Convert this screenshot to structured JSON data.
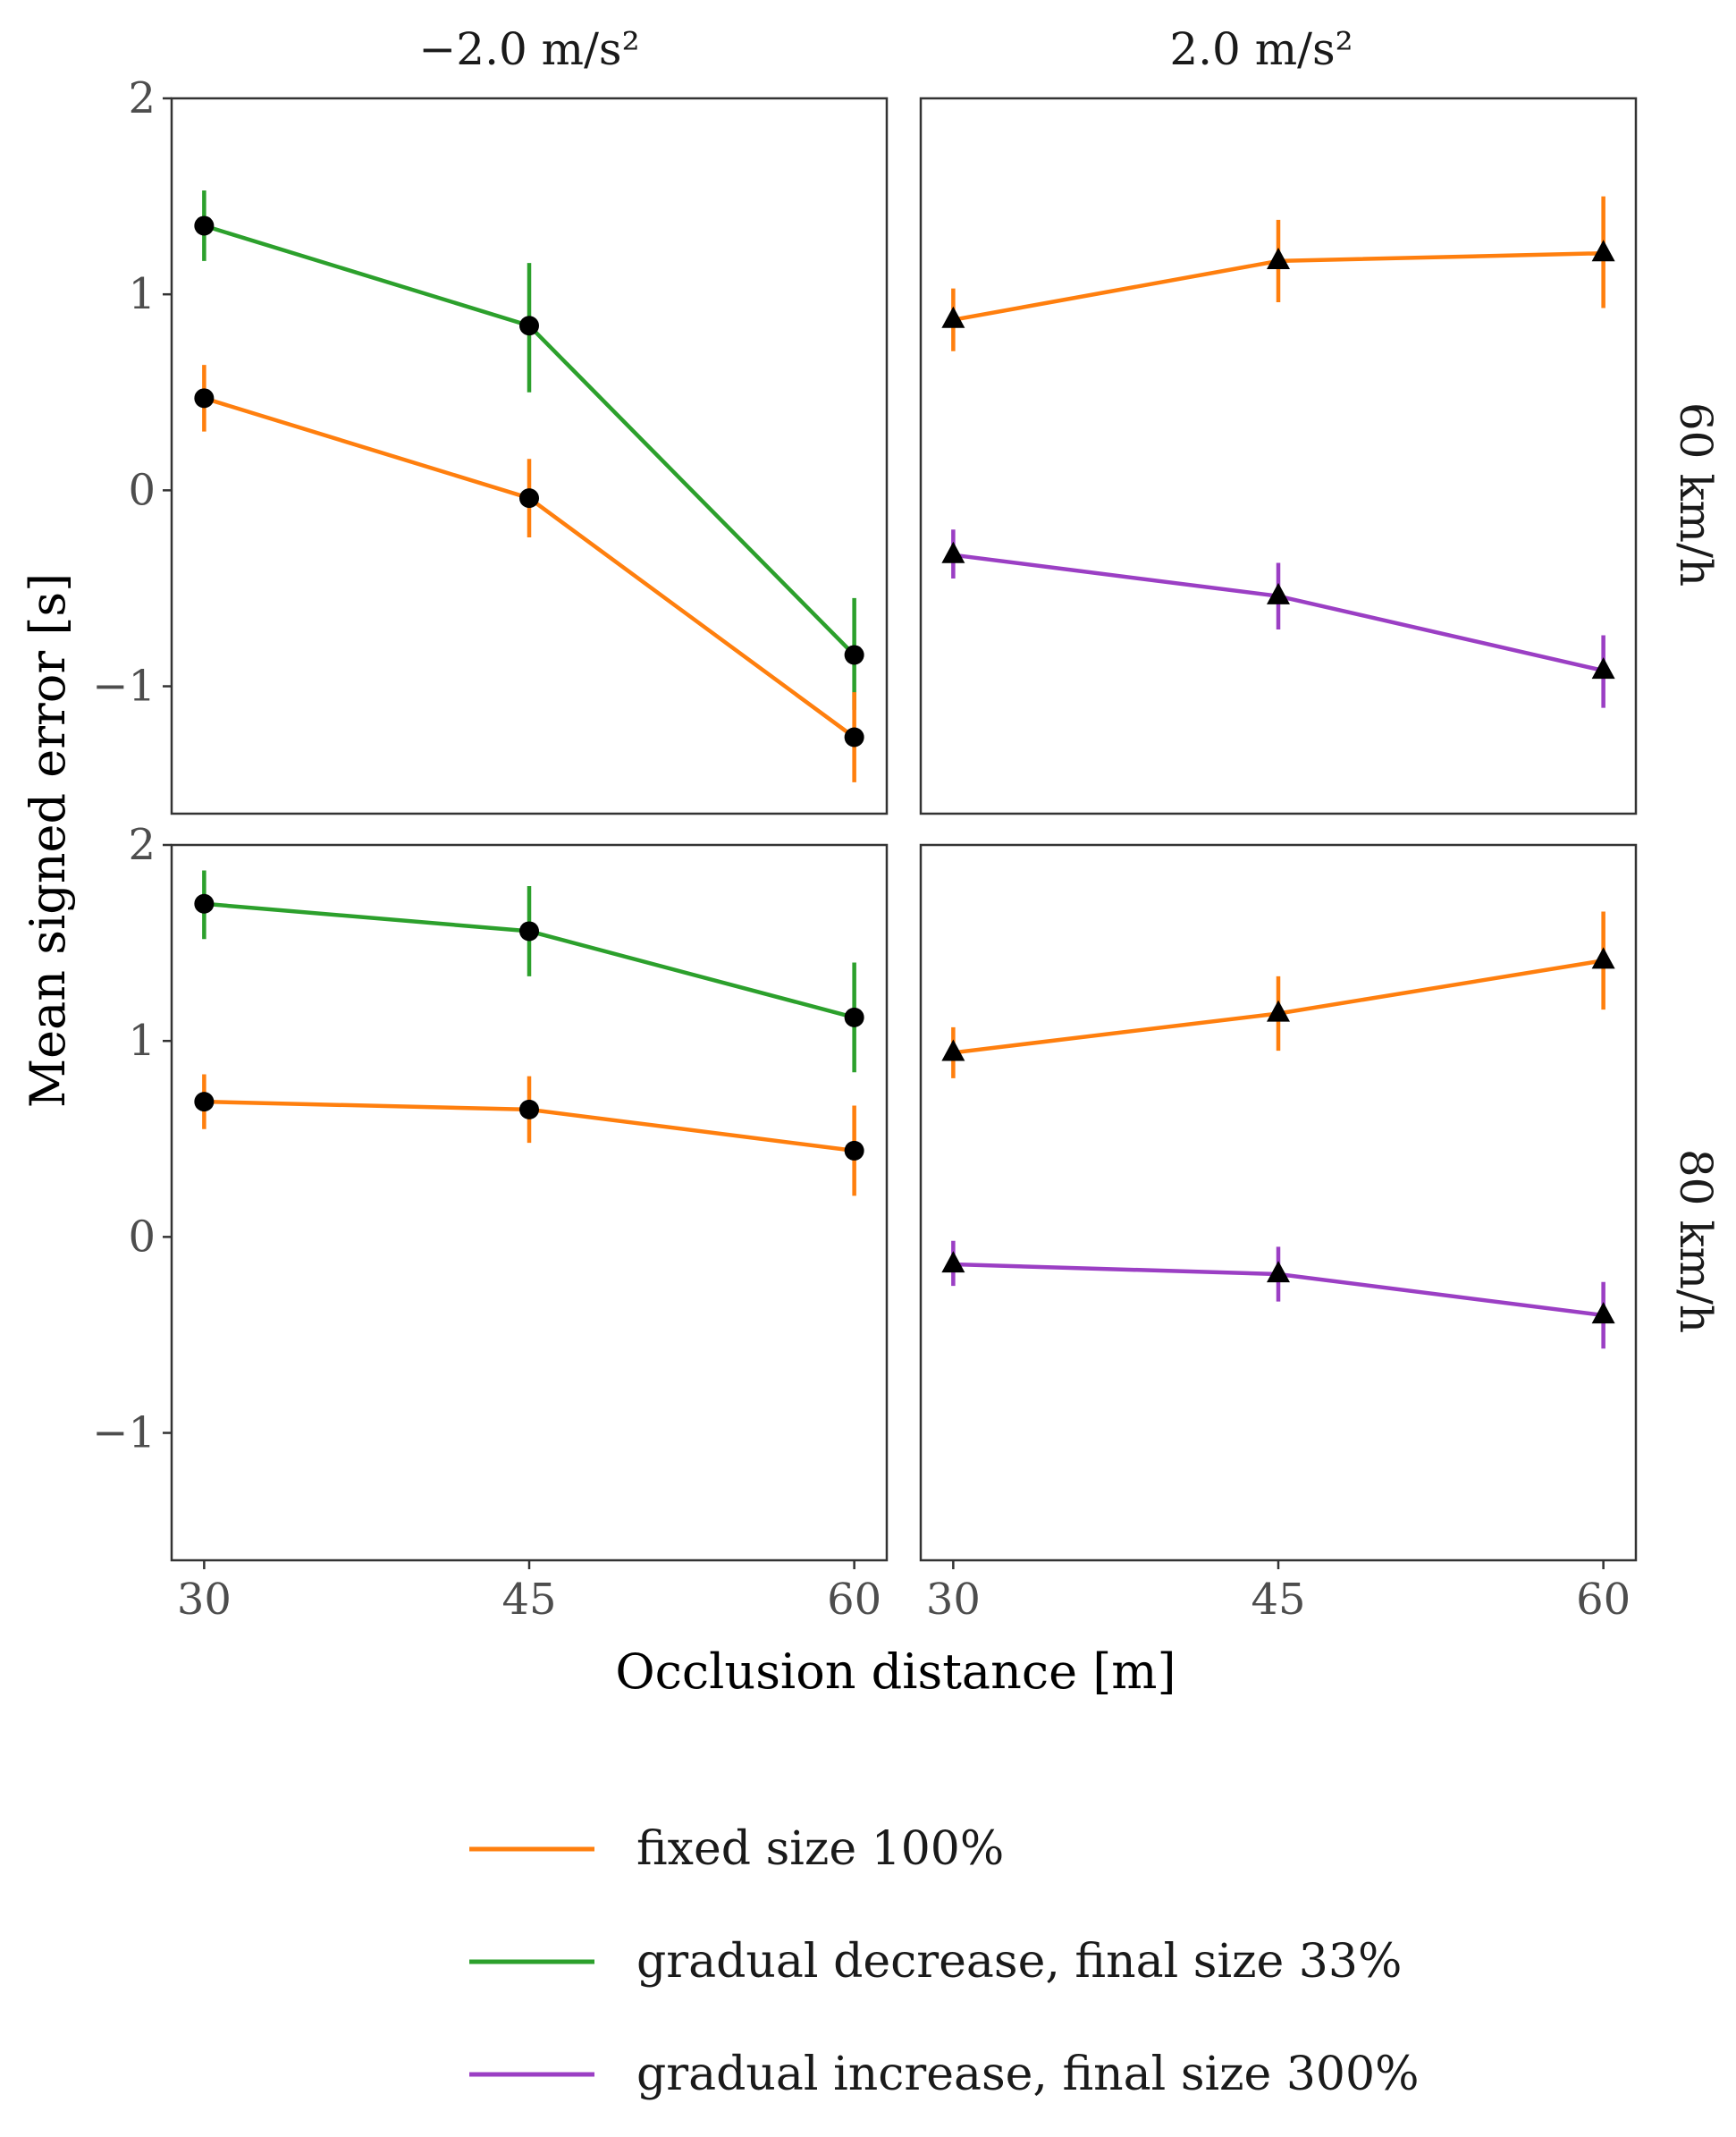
{
  "chart_data": {
    "type": "line",
    "xlabel": "Occlusion distance [m]",
    "ylabel": "Mean signed error [s]",
    "column_strips": [
      "−2.0 m/s²",
      "2.0 m/s²"
    ],
    "row_strips": [
      "60 km/h",
      "80 km/h"
    ],
    "x_ticks": [
      30,
      45,
      60
    ],
    "y_ticks": [
      -1,
      0,
      1,
      2
    ],
    "y_tick_labels": [
      "−1",
      "0",
      "1",
      "2"
    ],
    "xlim": [
      28.5,
      61.5
    ],
    "ylim": [
      -1.65,
      2.0
    ],
    "legend": [
      {
        "name": "fixed size 100%",
        "color": "#ff7f0e"
      },
      {
        "name": "gradual decrease, final size 33%",
        "color": "#2ca02c"
      },
      {
        "name": "gradual increase, final size 300%",
        "color": "#9b3fc4"
      }
    ],
    "panels": [
      {
        "row": 0,
        "col": 0,
        "marker": "circle",
        "series": [
          {
            "name": "gradual decrease, final size 33%",
            "color": "#2ca02c",
            "x": [
              30,
              45,
              60
            ],
            "y": [
              1.35,
              0.84,
              -0.84
            ],
            "ci_low": [
              1.17,
              0.5,
              -1.12
            ],
            "ci_high": [
              1.53,
              1.16,
              -0.55
            ]
          },
          {
            "name": "fixed size 100%",
            "color": "#ff7f0e",
            "x": [
              30,
              45,
              60
            ],
            "y": [
              0.47,
              -0.04,
              -1.26
            ],
            "ci_low": [
              0.3,
              -0.24,
              -1.49
            ],
            "ci_high": [
              0.64,
              0.16,
              -1.03
            ]
          }
        ]
      },
      {
        "row": 0,
        "col": 1,
        "marker": "triangle",
        "series": [
          {
            "name": "fixed size 100%",
            "color": "#ff7f0e",
            "x": [
              30,
              45,
              60
            ],
            "y": [
              0.87,
              1.17,
              1.21
            ],
            "ci_low": [
              0.71,
              0.96,
              0.93
            ],
            "ci_high": [
              1.03,
              1.38,
              1.5
            ]
          },
          {
            "name": "gradual increase, final size 300%",
            "color": "#9b3fc4",
            "x": [
              30,
              45,
              60
            ],
            "y": [
              -0.33,
              -0.54,
              -0.92
            ],
            "ci_low": [
              -0.45,
              -0.71,
              -1.11
            ],
            "ci_high": [
              -0.2,
              -0.37,
              -0.74
            ]
          }
        ]
      },
      {
        "row": 1,
        "col": 0,
        "marker": "circle",
        "series": [
          {
            "name": "gradual decrease, final size 33%",
            "color": "#2ca02c",
            "x": [
              30,
              45,
              60
            ],
            "y": [
              1.7,
              1.56,
              1.12
            ],
            "ci_low": [
              1.52,
              1.33,
              0.84
            ],
            "ci_high": [
              1.87,
              1.79,
              1.4
            ]
          },
          {
            "name": "fixed size 100%",
            "color": "#ff7f0e",
            "x": [
              30,
              45,
              60
            ],
            "y": [
              0.69,
              0.65,
              0.44
            ],
            "ci_low": [
              0.55,
              0.48,
              0.21
            ],
            "ci_high": [
              0.83,
              0.82,
              0.67
            ]
          }
        ]
      },
      {
        "row": 1,
        "col": 1,
        "marker": "triangle",
        "series": [
          {
            "name": "fixed size 100%",
            "color": "#ff7f0e",
            "x": [
              30,
              45,
              60
            ],
            "y": [
              0.94,
              1.14,
              1.41
            ],
            "ci_low": [
              0.81,
              0.95,
              1.16
            ],
            "ci_high": [
              1.07,
              1.33,
              1.66
            ]
          },
          {
            "name": "gradual increase, final size 300%",
            "color": "#9b3fc4",
            "x": [
              30,
              45,
              60
            ],
            "y": [
              -0.14,
              -0.19,
              -0.4
            ],
            "ci_low": [
              -0.25,
              -0.33,
              -0.57
            ],
            "ci_high": [
              -0.02,
              -0.05,
              -0.23
            ]
          }
        ]
      }
    ]
  }
}
